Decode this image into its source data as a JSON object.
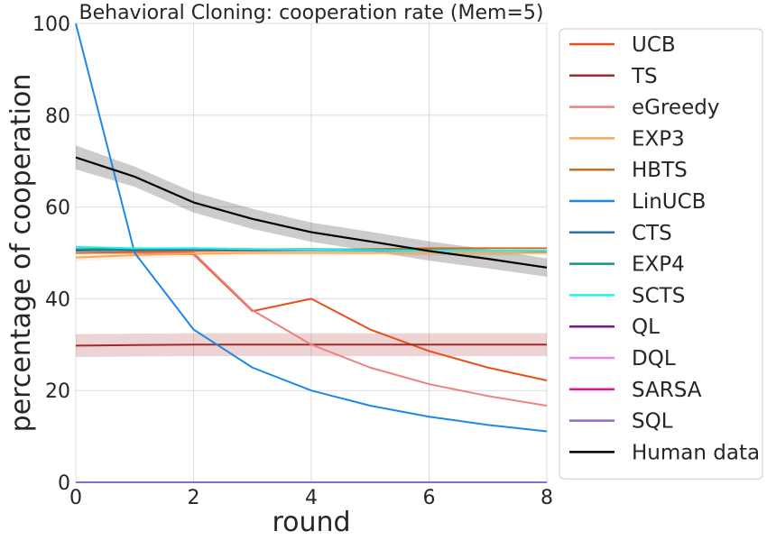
{
  "chart_data": {
    "type": "line",
    "title": "Behavioral Cloning: cooperation rate (Mem=5)",
    "xlabel": "round",
    "ylabel": "percentage of cooperation",
    "xlim": [
      0,
      8
    ],
    "ylim": [
      0,
      100
    ],
    "xticks": [
      0,
      2,
      4,
      6,
      8
    ],
    "yticks": [
      0,
      20,
      40,
      60,
      80,
      100
    ],
    "grid": true,
    "legend_position": "right-outside",
    "x": [
      0,
      1,
      2,
      3,
      4,
      5,
      6,
      7,
      8
    ],
    "series": [
      {
        "name": "UCB",
        "color": "#e8501a",
        "values": [
          50,
          50,
          49.7,
          37.3,
          40,
          33.3,
          28.6,
          25,
          22.2
        ]
      },
      {
        "name": "TS",
        "color": "#a3282a",
        "values": [
          29.8,
          29.9,
          30,
          30,
          30,
          30,
          30,
          30,
          30
        ],
        "band": [
          [
            27.3,
            32.3
          ],
          [
            27.4,
            32.4
          ],
          [
            27.5,
            32.5
          ],
          [
            27.5,
            32.5
          ],
          [
            27.5,
            32.5
          ],
          [
            27.5,
            32.5
          ],
          [
            27.5,
            32.5
          ],
          [
            27.5,
            32.5
          ],
          [
            27.5,
            32.5
          ]
        ]
      },
      {
        "name": "eGreedy",
        "color": "#f08080",
        "values": [
          50,
          50,
          50,
          37.5,
          30,
          25,
          21.4,
          18.8,
          16.7
        ]
      },
      {
        "name": "EXP3",
        "color": "#f5a85a",
        "values": [
          49,
          49.5,
          49.8,
          50,
          50,
          50,
          50,
          50,
          50
        ],
        "band": [
          [
            48.2,
            49.8
          ],
          [
            48.8,
            50.2
          ],
          [
            49.2,
            50.4
          ],
          [
            49.4,
            50.6
          ],
          [
            49.4,
            50.6
          ],
          [
            49.4,
            50.6
          ],
          [
            49.4,
            50.6
          ],
          [
            49.4,
            50.6
          ],
          [
            49.4,
            50.6
          ]
        ]
      },
      {
        "name": "HBTS",
        "color": "#d2691e",
        "values": [
          50,
          50.2,
          50.4,
          50.5,
          50.6,
          50.8,
          51,
          51,
          51
        ]
      },
      {
        "name": "LinUCB",
        "color": "#1e88e5",
        "values": [
          100,
          50,
          33.3,
          25,
          20,
          16.7,
          14.3,
          12.5,
          11.1
        ]
      },
      {
        "name": "CTS",
        "color": "#2e6f9e",
        "values": [
          50.5,
          50.6,
          50.7,
          50.6,
          50.6,
          50.5,
          50.5,
          50.5,
          50.5
        ]
      },
      {
        "name": "EXP4",
        "color": "#10958a",
        "values": [
          50.8,
          50.9,
          51,
          50.8,
          50.8,
          50.7,
          50.6,
          50.5,
          50.4
        ]
      },
      {
        "name": "SCTS",
        "color": "#22eeee",
        "values": [
          51.3,
          51,
          51,
          50.8,
          50.7,
          50.6,
          50.5,
          50.5,
          50.5
        ]
      },
      {
        "name": "QL",
        "color": "#7b1a8a",
        "values": [
          0,
          0,
          0,
          0,
          0,
          0,
          0,
          0,
          0
        ]
      },
      {
        "name": "DQL",
        "color": "#ee82ee",
        "values": [
          0,
          0,
          0,
          0,
          0,
          0,
          0,
          0,
          0
        ]
      },
      {
        "name": "SARSA",
        "color": "#e7138f",
        "values": [
          0,
          0,
          0,
          0,
          0,
          0,
          0,
          0,
          0
        ]
      },
      {
        "name": "SQL",
        "color": "#8c6bd1",
        "values": [
          0,
          0,
          0,
          0,
          0,
          0,
          0,
          0,
          0
        ]
      },
      {
        "name": "Human data",
        "color": "#000000",
        "values": [
          70.8,
          66.6,
          61,
          57.4,
          54.5,
          52.5,
          50.4,
          48.7,
          46.8
        ],
        "band": [
          [
            68.2,
            73.4
          ],
          [
            64.4,
            68.8
          ],
          [
            58.8,
            63.2
          ],
          [
            55.2,
            59.6
          ],
          [
            52.4,
            56.6
          ],
          [
            50.4,
            54.6
          ],
          [
            48.3,
            52.5
          ],
          [
            46.6,
            50.8
          ],
          [
            44.8,
            48.8
          ]
        ]
      }
    ]
  }
}
